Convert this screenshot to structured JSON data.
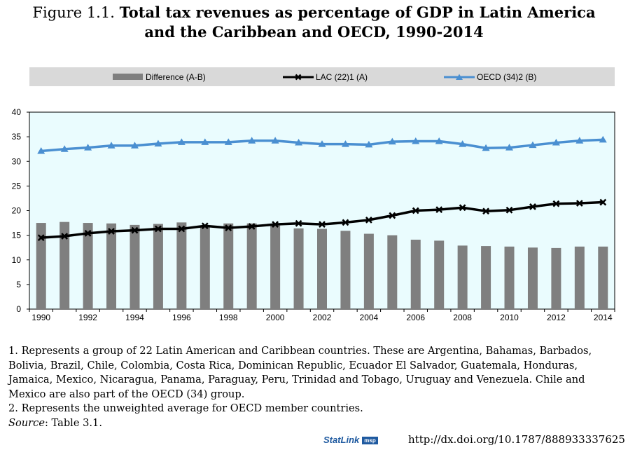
{
  "title": {
    "prefix": "Figure 1.1.",
    "line1": "Total tax revenues as percentage of GDP in Latin America",
    "line2": "and the Caribbean and OECD, 1990-2014"
  },
  "legend": {
    "diff": "Difference (A-B)",
    "lac": "LAC (22)1 (A)",
    "oecd": "OECD (34)2 (B)"
  },
  "notes": {
    "n1": "1. Represents a group of 22 Latin American and Caribbean countries. These are Argentina, Bahamas, Barbados, Bolivia, Brazil, Chile, Colombia, Costa Rica, Dominican Republic, Ecuador El Salvador, Guatemala, Honduras, Jamaica, Mexico, Nicaragua, Panama, Paraguay, Peru, Trinidad and Tobago, Uruguay and Venezuela. Chile and Mexico are also part of the OECD (34) group.",
    "n2": "2. Represents the unweighted average for OECD member countries.",
    "source_label": "Source",
    "source_text": ": Table 3.1."
  },
  "statlink": {
    "label": "StatLink",
    "logo": "msp",
    "url": "http://dx.doi.org/10.1787/888933337625"
  },
  "colors": {
    "bar": "#7f7f7f",
    "lac": "#000000",
    "oecd": "#4a8fd1",
    "plot_bg": "#eafcfe"
  },
  "chart_data": {
    "type": "bar",
    "x": [
      1990,
      1991,
      1992,
      1993,
      1994,
      1995,
      1996,
      1997,
      1998,
      1999,
      2000,
      2001,
      2002,
      2003,
      2004,
      2005,
      2006,
      2007,
      2008,
      2009,
      2010,
      2011,
      2012,
      2013,
      2014
    ],
    "xtick_labels": [
      "1990",
      "1992",
      "1994",
      "1996",
      "1998",
      "2000",
      "2002",
      "2004",
      "2006",
      "2008",
      "2010",
      "2012",
      "2014"
    ],
    "ylim": [
      0,
      40
    ],
    "yticks": [
      0,
      5,
      10,
      15,
      20,
      25,
      30,
      35,
      40
    ],
    "series": [
      {
        "name": "Difference (A-B)",
        "type": "bar",
        "values": [
          17.5,
          17.7,
          17.5,
          17.4,
          17.1,
          17.3,
          17.6,
          17.0,
          17.4,
          17.4,
          17.0,
          16.4,
          16.3,
          15.9,
          15.3,
          15.0,
          14.1,
          13.9,
          12.9,
          12.8,
          12.7,
          12.5,
          12.4,
          12.7,
          12.7
        ]
      },
      {
        "name": "LAC (22)1 (A)",
        "type": "line",
        "marker": "x",
        "values": [
          14.5,
          14.8,
          15.4,
          15.8,
          16.0,
          16.3,
          16.3,
          16.9,
          16.5,
          16.8,
          17.2,
          17.4,
          17.2,
          17.6,
          18.1,
          19.0,
          20.0,
          20.2,
          20.6,
          19.9,
          20.1,
          20.8,
          21.4,
          21.5,
          21.7
        ]
      },
      {
        "name": "OECD (34)2 (B)",
        "type": "line",
        "marker": "triangle",
        "values": [
          32.1,
          32.5,
          32.8,
          33.2,
          33.2,
          33.6,
          33.9,
          33.9,
          33.9,
          34.2,
          34.2,
          33.8,
          33.5,
          33.5,
          33.4,
          34.0,
          34.1,
          34.1,
          33.5,
          32.7,
          32.8,
          33.3,
          33.8,
          34.2,
          34.4
        ]
      }
    ],
    "xlabel": "",
    "ylabel": "",
    "grid": false,
    "legend_position": "top"
  }
}
